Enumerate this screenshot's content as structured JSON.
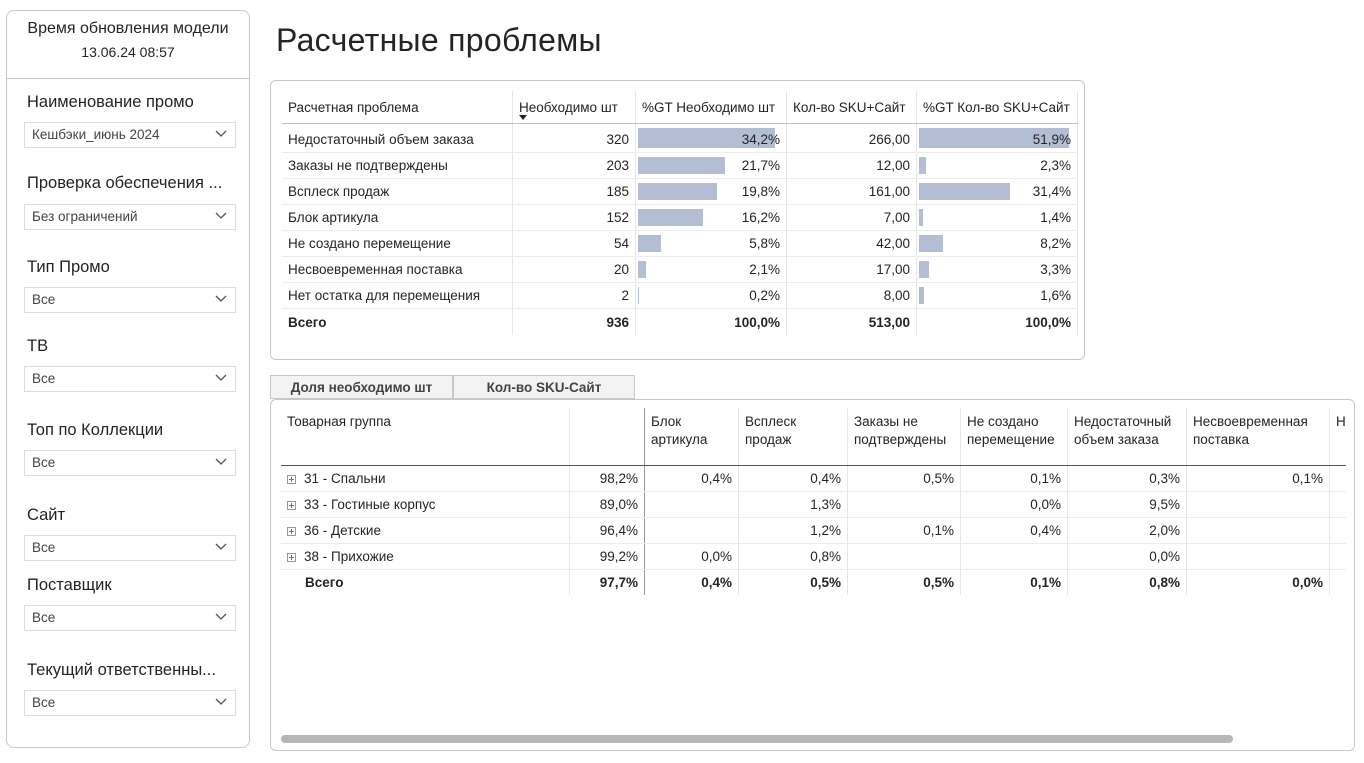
{
  "sidebar": {
    "model_update_label": "Время обновления модели",
    "model_update_time": "13.06.24 08:57",
    "filters": [
      {
        "title": "Наименование промо",
        "value": "Кешбэки_июнь 2024"
      },
      {
        "title": "Проверка обеспечения ...",
        "value": "Без ограничений"
      },
      {
        "title": "Тип Промо",
        "value": "Все"
      },
      {
        "title": "ТВ",
        "value": "Все"
      },
      {
        "title": "Топ по Коллекции",
        "value": "Все"
      },
      {
        "title": "Сайт",
        "value": "Все"
      },
      {
        "title": "Поставщик",
        "value": "Все"
      },
      {
        "title": "Текущий ответственны...",
        "value": "Все"
      }
    ]
  },
  "page_title": "Расчетные проблемы",
  "table1": {
    "headers": [
      "Расчетная проблема",
      "Необходимо шт",
      "%GT Необходимо шт",
      "Кол-во SKU+Сайт",
      "%GT Кол-во SKU+Сайт"
    ],
    "rows": [
      {
        "name": "Недостаточный объем заказа",
        "qty": "320",
        "pct_qty": "34,2%",
        "pct_qty_num": 34.2,
        "sku": "266,00",
        "pct_sku": "51,9%",
        "pct_sku_num": 51.9
      },
      {
        "name": "Заказы не подтверждены",
        "qty": "203",
        "pct_qty": "21,7%",
        "pct_qty_num": 21.7,
        "sku": "12,00",
        "pct_sku": "2,3%",
        "pct_sku_num": 2.3
      },
      {
        "name": "Всплеск продаж",
        "qty": "185",
        "pct_qty": "19,8%",
        "pct_qty_num": 19.8,
        "sku": "161,00",
        "pct_sku": "31,4%",
        "pct_sku_num": 31.4
      },
      {
        "name": "Блок артикула",
        "qty": "152",
        "pct_qty": "16,2%",
        "pct_qty_num": 16.2,
        "sku": "7,00",
        "pct_sku": "1,4%",
        "pct_sku_num": 1.4
      },
      {
        "name": "Не создано перемещение",
        "qty": "54",
        "pct_qty": "5,8%",
        "pct_qty_num": 5.8,
        "sku": "42,00",
        "pct_sku": "8,2%",
        "pct_sku_num": 8.2
      },
      {
        "name": "Несвоевременная поставка",
        "qty": "20",
        "pct_qty": "2,1%",
        "pct_qty_num": 2.1,
        "sku": "17,00",
        "pct_sku": "3,3%",
        "pct_sku_num": 3.3
      },
      {
        "name": "Нет остатка для перемещения",
        "qty": "2",
        "pct_qty": "0,2%",
        "pct_qty_num": 0.2,
        "sku": "8,00",
        "pct_sku": "1,6%",
        "pct_sku_num": 1.6
      }
    ],
    "total": {
      "name": "Всего",
      "qty": "936",
      "pct_qty": "100,0%",
      "sku": "513,00",
      "pct_sku": "100,0%"
    }
  },
  "tabs": [
    "Доля необходимо шт",
    "Кол-во SKU-Сайт"
  ],
  "table2": {
    "headers": [
      "Товарная группа",
      "",
      "Блок артикула",
      "Всплеск продаж",
      "Заказы не подтверждены",
      "Не создано перемещение",
      "Недостаточный объем заказа",
      "Несвоевременная поставка",
      "Не пе"
    ],
    "rows": [
      {
        "name": "31 - Спальни",
        "cells": [
          "98,2%",
          "0,4%",
          "0,4%",
          "0,5%",
          "0,1%",
          "0,3%",
          "0,1%",
          ""
        ]
      },
      {
        "name": "33 - Гостиные корпус",
        "cells": [
          "89,0%",
          "",
          "1,3%",
          "",
          "0,0%",
          "9,5%",
          "",
          ""
        ]
      },
      {
        "name": "36 - Детские",
        "cells": [
          "96,4%",
          "",
          "1,2%",
          "0,1%",
          "0,4%",
          "2,0%",
          "",
          ""
        ]
      },
      {
        "name": "38 - Прихожие",
        "cells": [
          "99,2%",
          "0,0%",
          "0,8%",
          "",
          "",
          "0,0%",
          "",
          ""
        ]
      }
    ],
    "total": {
      "name": "Всего",
      "cells": [
        "97,7%",
        "0,4%",
        "0,5%",
        "0,5%",
        "0,1%",
        "0,8%",
        "0,0%",
        ""
      ]
    }
  }
}
